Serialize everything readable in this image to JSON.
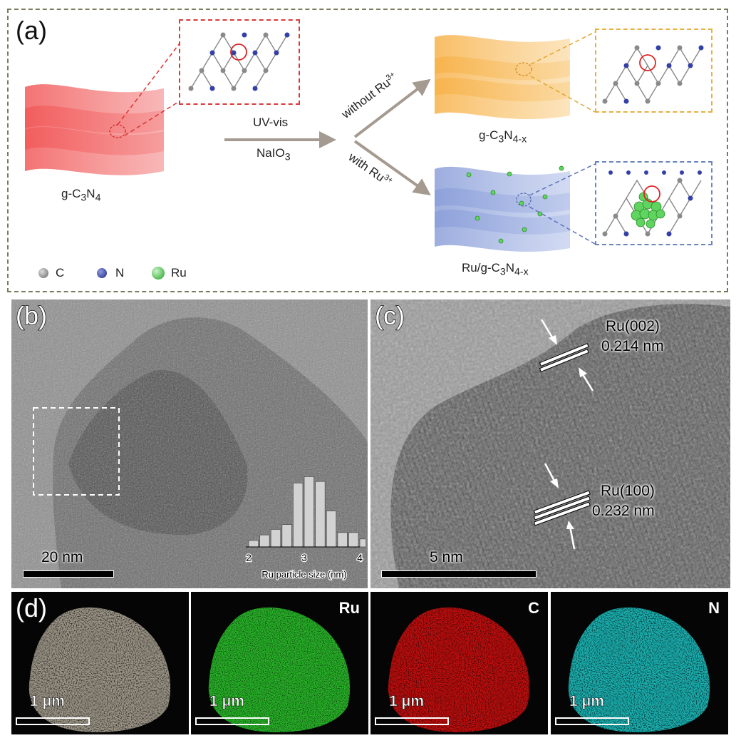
{
  "panel_a": {
    "letter": "(a)",
    "reactant_label": {
      "prefix": "g-C",
      "sub1": "3",
      "mid": "N",
      "sub2": "4"
    },
    "arrow_top": "UV-vis",
    "arrow_bottom": {
      "prefix": "NaIO",
      "sub": "3"
    },
    "branch_up": {
      "text": "without Ru",
      "sup": "3+"
    },
    "branch_down": {
      "text": "with Ru",
      "sup": "3+"
    },
    "product_top": {
      "prefix": "g-C",
      "sub1": "3",
      "mid": "N",
      "sub2": "4-x"
    },
    "product_bottom": {
      "prefix": "Ru/g-C",
      "sub1": "3",
      "mid": "N",
      "sub2": "4-x"
    },
    "legend": [
      {
        "symbol": "C",
        "color": "#8a8a8a"
      },
      {
        "symbol": "N",
        "color": "#3340a8"
      },
      {
        "symbol": "Ru",
        "color": "#3fbf3f"
      }
    ]
  },
  "panel_b": {
    "letter": "(b)",
    "scale": "20 nm",
    "histogram": {
      "xlabel": "Ru particle size (nm)",
      "ticks": [
        "2",
        "3",
        "4"
      ],
      "bin_start": 2.0,
      "bin_width": 0.2,
      "relative_counts": [
        0.08,
        0.15,
        0.22,
        0.28,
        0.8,
        0.88,
        0.82,
        0.45,
        0.18,
        0.18,
        0.1
      ]
    }
  },
  "panel_c": {
    "letter": "(c)",
    "scale": "5 nm",
    "fringes": [
      {
        "plane": "Ru(002)",
        "spacing": "0.214 nm"
      },
      {
        "plane": "Ru(100)",
        "spacing": "0.232 nm"
      }
    ]
  },
  "panel_d": {
    "letter": "(d)",
    "maps": [
      {
        "label": "",
        "scale": "1 μm",
        "color": "#b8b0a0"
      },
      {
        "label": "Ru",
        "scale": "1 μm",
        "color": "#2ecc2e"
      },
      {
        "label": "C",
        "scale": "1 μm",
        "color": "#e01010"
      },
      {
        "label": "N",
        "scale": "1 μm",
        "color": "#20d0d0"
      }
    ]
  }
}
